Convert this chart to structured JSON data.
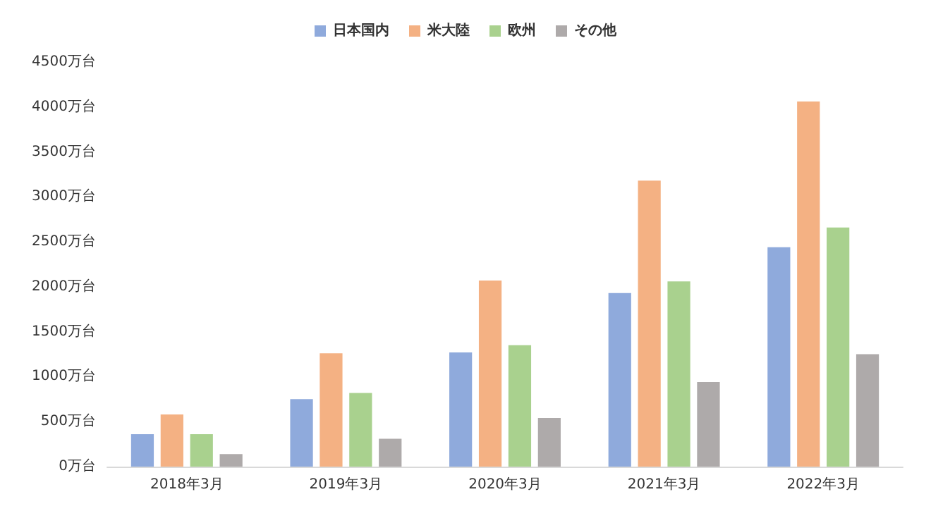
{
  "chart_data": {
    "type": "bar",
    "categories": [
      "2018年3月",
      "2019年3月",
      "2020年3月",
      "2021年3月",
      "2022年3月"
    ],
    "series": [
      {
        "name": "日本国内",
        "color": "#8faadc",
        "values": [
          360,
          750,
          1270,
          1930,
          2440
        ]
      },
      {
        "name": "米大陸",
        "color": "#f4b183",
        "values": [
          580,
          1260,
          2070,
          3180,
          4060
        ]
      },
      {
        "name": "欧州",
        "color": "#a9d18e",
        "values": [
          360,
          820,
          1350,
          2060,
          2660
        ]
      },
      {
        "name": "その他",
        "color": "#aeaaaa",
        "values": [
          140,
          310,
          540,
          940,
          1250
        ]
      }
    ],
    "ylim": [
      0,
      4500
    ],
    "yticks": [
      {
        "value": 0,
        "label": "0万台"
      },
      {
        "value": 500,
        "label": "500万台"
      },
      {
        "value": 1000,
        "label": "1000万台"
      },
      {
        "value": 1500,
        "label": "1500万台"
      },
      {
        "value": 2000,
        "label": "2000万台"
      },
      {
        "value": 2500,
        "label": "2500万台"
      },
      {
        "value": 3000,
        "label": "3000万台"
      },
      {
        "value": 3500,
        "label": "3500万台"
      },
      {
        "value": 4000,
        "label": "4000万台"
      },
      {
        "value": 4500,
        "label": "4500万台"
      }
    ],
    "grid": false,
    "legend": "top"
  }
}
